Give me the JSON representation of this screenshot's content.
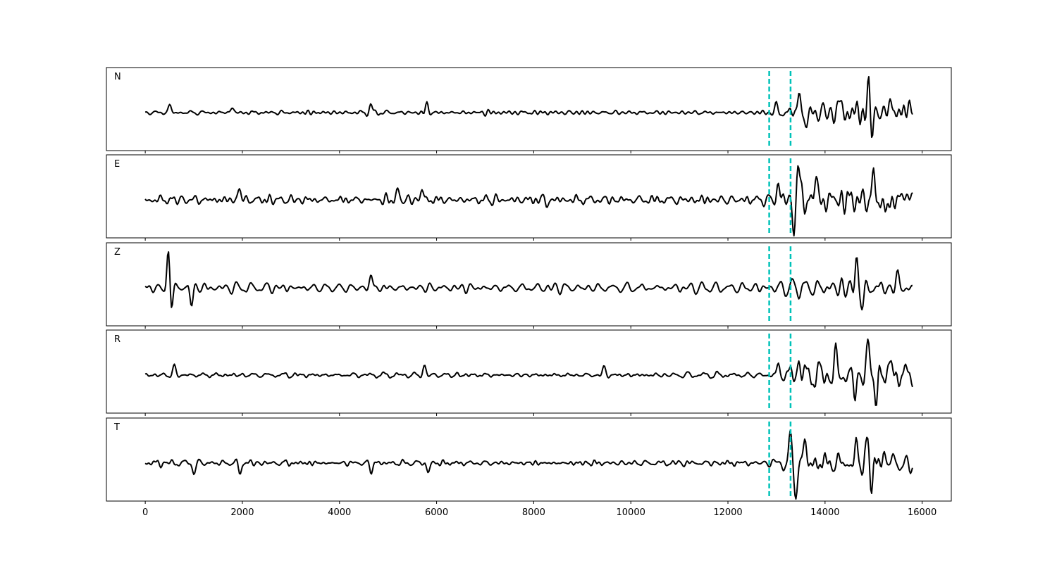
{
  "chart_data": {
    "type": "line",
    "x_range": [
      0,
      15800
    ],
    "xlim": [
      -800,
      16600
    ],
    "x_ticks": [
      0,
      2000,
      4000,
      6000,
      8000,
      10000,
      12000,
      14000,
      16000
    ],
    "x_tick_labels": [
      "0",
      "2000",
      "4000",
      "6000",
      "8000",
      "10000",
      "12000",
      "14000",
      "16000"
    ],
    "sample_step": 20,
    "line_color": "#000000",
    "marker_color": "#00c2b8",
    "markers": [
      12850,
      13290
    ],
    "panels": [
      {
        "label": "N",
        "bursts": [
          {
            "x": 500,
            "amp": 0.3
          },
          {
            "x": 1780,
            "amp": 0.22
          },
          {
            "x": 4650,
            "amp": 0.28
          },
          {
            "x": 5800,
            "amp": 0.32
          },
          {
            "x": 13000,
            "amp": 0.25
          },
          {
            "x": 13460,
            "amp": 0.85
          },
          {
            "x": 13600,
            "amp": -0.6
          },
          {
            "x": 14300,
            "amp": 0.45
          },
          {
            "x": 14900,
            "amp": 1.0
          },
          {
            "x": 14960,
            "amp": -0.75
          },
          {
            "x": 15350,
            "amp": 0.5
          },
          {
            "x": 15700,
            "amp": 0.35
          }
        ],
        "noise_base": 0.11,
        "tail_amp": 0.4
      },
      {
        "label": "E",
        "bursts": [
          {
            "x": 1940,
            "amp": 0.38
          },
          {
            "x": 5200,
            "amp": 0.3
          },
          {
            "x": 5700,
            "amp": 0.35
          },
          {
            "x": 8250,
            "amp": -0.4
          },
          {
            "x": 8230,
            "amp": 0.3
          },
          {
            "x": 13030,
            "amp": 0.55
          },
          {
            "x": 13350,
            "amp": -0.75
          },
          {
            "x": 13450,
            "amp": 1.0
          },
          {
            "x": 13800,
            "amp": 0.75
          },
          {
            "x": 15000,
            "amp": 0.8
          },
          {
            "x": 15250,
            "amp": -0.6
          },
          {
            "x": 15700,
            "amp": 0.45
          }
        ],
        "noise_base": 0.2,
        "tail_amp": 0.45
      },
      {
        "label": "Z",
        "bursts": [
          {
            "x": 480,
            "amp": 1.0
          },
          {
            "x": 530,
            "amp": -0.5
          },
          {
            "x": 950,
            "amp": -0.45
          },
          {
            "x": 4650,
            "amp": 0.65
          },
          {
            "x": 4650,
            "amp": -0.3
          },
          {
            "x": 14650,
            "amp": 0.75
          },
          {
            "x": 14770,
            "amp": -0.55
          },
          {
            "x": 15500,
            "amp": 0.35
          }
        ],
        "noise_base": 0.18,
        "tail_amp": 0.25
      },
      {
        "label": "R",
        "bursts": [
          {
            "x": 600,
            "amp": 0.28
          },
          {
            "x": 5750,
            "amp": 0.3
          },
          {
            "x": 9450,
            "amp": 0.25
          },
          {
            "x": 13050,
            "amp": 0.35
          },
          {
            "x": 13450,
            "amp": 0.55
          },
          {
            "x": 14220,
            "amp": 0.6
          },
          {
            "x": 14620,
            "amp": -0.7
          },
          {
            "x": 14880,
            "amp": 1.0
          },
          {
            "x": 15050,
            "amp": -0.7
          },
          {
            "x": 15350,
            "amp": 0.45
          }
        ],
        "noise_base": 0.11,
        "tail_amp": 0.4
      },
      {
        "label": "T",
        "bursts": [
          {
            "x": 1000,
            "amp": -0.35
          },
          {
            "x": 1950,
            "amp": -0.35
          },
          {
            "x": 4650,
            "amp": -0.3
          },
          {
            "x": 5830,
            "amp": -0.35
          },
          {
            "x": 13280,
            "amp": 0.75
          },
          {
            "x": 13400,
            "amp": -1.0
          },
          {
            "x": 13580,
            "amp": 0.8
          },
          {
            "x": 14650,
            "amp": 0.6
          },
          {
            "x": 14880,
            "amp": 0.85
          },
          {
            "x": 14950,
            "amp": -0.8
          },
          {
            "x": 15250,
            "amp": 0.45
          },
          {
            "x": 15750,
            "amp": -0.4
          }
        ],
        "noise_base": 0.13,
        "tail_amp": 0.35
      }
    ]
  }
}
